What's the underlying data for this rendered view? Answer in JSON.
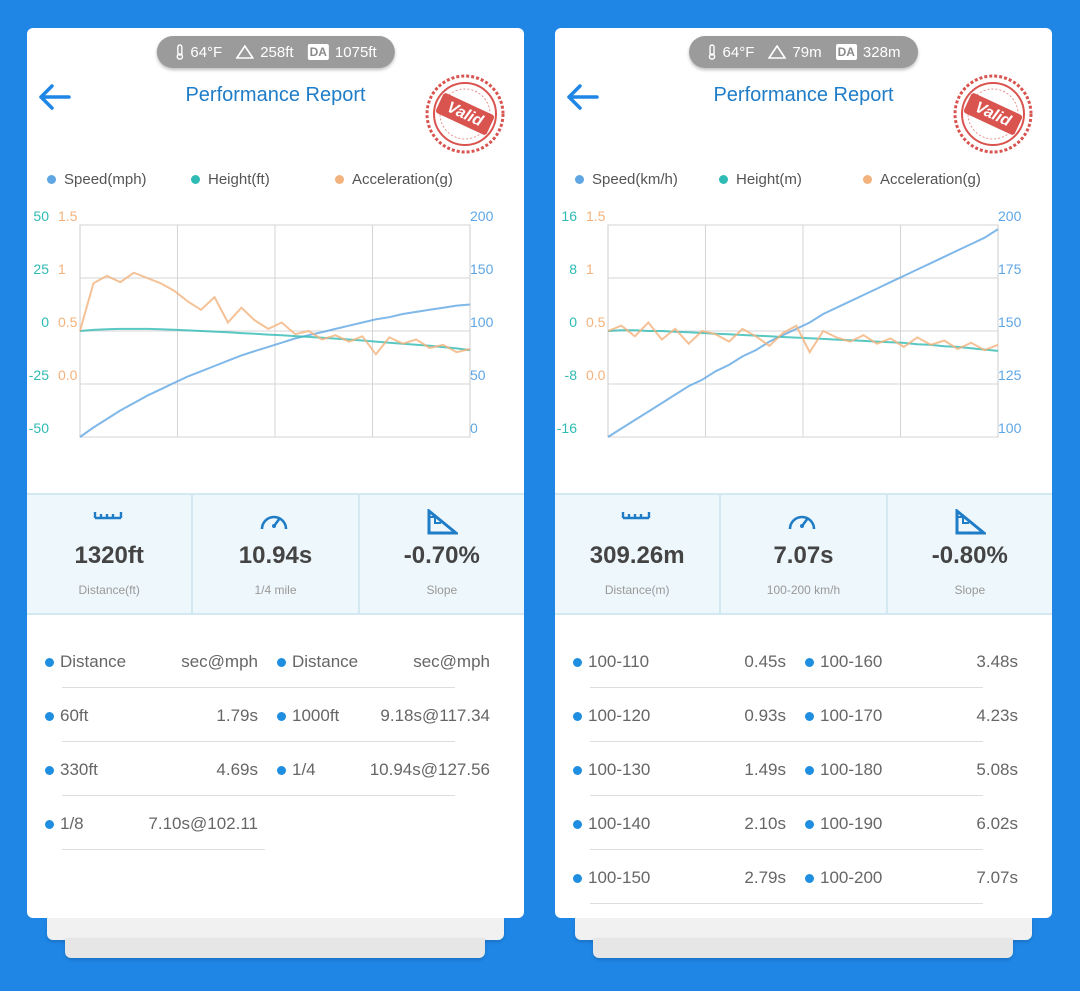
{
  "panels": [
    {
      "weather": {
        "temperature": "64°F",
        "altitude": "258ft",
        "da_label": "DA",
        "density_altitude": "1075ft"
      },
      "title": "Performance Report",
      "stamp": "Valid",
      "chart_data": {
        "type": "line",
        "grid": true,
        "series": [
          {
            "name": "Speed(mph)",
            "color": "#5fa6e4",
            "axis": "y2",
            "values": [
              0,
              9,
              17,
              25,
              32,
              39,
              45,
              51,
              57,
              62,
              67,
              72,
              77,
              81,
              85,
              89,
              93,
              96,
              99,
              102,
              105,
              108,
              111,
              113,
              116,
              118,
              120,
              122,
              124,
              125
            ]
          },
          {
            "name": "Height(ft)",
            "color": "#2fbab4",
            "values": [
              0,
              0.5,
              0.8,
              1,
              1,
              1,
              0.8,
              0.6,
              0.3,
              0,
              -0.3,
              -0.6,
              -1,
              -1.3,
              -1.7,
              -2,
              -2.4,
              -2.8,
              -3.2,
              -3.6,
              -4,
              -4.5,
              -5,
              -5.5,
              -6,
              -6.5,
              -7,
              -7.6,
              -8.2,
              -9
            ]
          },
          {
            "name": "Acceleration(g)",
            "color": "#f3b27c",
            "axis": "y3",
            "values": [
              0.5,
              0.95,
              1.02,
              0.96,
              1.05,
              1.0,
              0.95,
              0.88,
              0.78,
              0.7,
              0.82,
              0.58,
              0.72,
              0.6,
              0.52,
              0.58,
              0.47,
              0.5,
              0.42,
              0.46,
              0.4,
              0.45,
              0.28,
              0.44,
              0.38,
              0.42,
              0.34,
              0.37,
              0.3,
              0.33
            ]
          }
        ],
        "ylim": [
          -50,
          50
        ],
        "yticks": [
          -50,
          -25,
          0,
          25,
          50
        ],
        "y2lim": [
          0,
          200
        ],
        "y2ticks": [
          0,
          50,
          100,
          150,
          200
        ],
        "y3lim": [
          -0.5,
          1.5
        ],
        "y3ticks": [
          {
            "value": 0,
            "label": "0.0"
          },
          0.5,
          1,
          1.5
        ]
      },
      "stats": [
        {
          "value": "1320ft",
          "label": "Distance(ft)"
        },
        {
          "value": "10.94s",
          "label": "1/4 mile"
        },
        {
          "value": "-0.70%",
          "label": "Slope"
        }
      ],
      "table": {
        "header": [
          "Distance",
          "sec@mph",
          "Distance",
          "sec@mph"
        ],
        "rows": [
          [
            "60ft",
            "1.79s",
            "1000ft",
            "9.18s@117.34"
          ],
          [
            "330ft",
            "4.69s",
            "1/4",
            "10.94s@127.56"
          ],
          [
            "1/8",
            "7.10s@102.11"
          ]
        ]
      }
    },
    {
      "weather": {
        "temperature": "64°F",
        "altitude": "79m",
        "da_label": "DA",
        "density_altitude": "328m"
      },
      "title": "Performance Report",
      "stamp": "Valid",
      "chart_data": {
        "type": "line",
        "grid": true,
        "series": [
          {
            "name": "Speed(km/h)",
            "color": "#5fa6e4",
            "axis": "y2",
            "values": [
              100,
              104,
              108,
              112,
              116,
              120,
              124,
              127,
              131,
              134,
              138,
              141,
              145,
              148,
              151,
              154,
              158,
              161,
              164,
              167,
              170,
              173,
              176,
              179,
              182,
              185,
              188,
              191,
              194,
              198
            ]
          },
          {
            "name": "Height(m)",
            "color": "#2fbab4",
            "values": [
              0,
              0.1,
              0.1,
              0,
              0,
              -0.1,
              -0.2,
              -0.3,
              -0.4,
              -0.5,
              -0.6,
              -0.7,
              -0.8,
              -0.9,
              -1,
              -1.1,
              -1.2,
              -1.3,
              -1.4,
              -1.5,
              -1.6,
              -1.7,
              -1.8,
              -2,
              -2.1,
              -2.3,
              -2.4,
              -2.6,
              -2.8,
              -3
            ]
          },
          {
            "name": "Acceleration(g)",
            "color": "#f3b27c",
            "axis": "y3",
            "values": [
              0.5,
              0.55,
              0.45,
              0.58,
              0.42,
              0.52,
              0.38,
              0.5,
              0.47,
              0.4,
              0.52,
              0.45,
              0.36,
              0.48,
              0.55,
              0.3,
              0.5,
              0.44,
              0.4,
              0.46,
              0.38,
              0.43,
              0.35,
              0.44,
              0.37,
              0.41,
              0.33,
              0.39,
              0.32,
              0.37
            ]
          }
        ],
        "ylim": [
          -16,
          16
        ],
        "yticks": [
          -16,
          -8,
          0,
          8,
          16
        ],
        "y2lim": [
          100,
          200
        ],
        "y2ticks": [
          100,
          125,
          150,
          175,
          200
        ],
        "y3lim": [
          -0.5,
          1.5
        ],
        "y3ticks": [
          {
            "value": 0,
            "label": "0.0"
          },
          0.5,
          1,
          1.5
        ]
      },
      "stats": [
        {
          "value": "309.26m",
          "label": "Distance(m)"
        },
        {
          "value": "7.07s",
          "label": "100-200 km/h"
        },
        {
          "value": "-0.80%",
          "label": "Slope"
        }
      ],
      "table": {
        "rows": [
          [
            "100-110",
            "0.45s",
            "100-160",
            "3.48s"
          ],
          [
            "100-120",
            "0.93s",
            "100-170",
            "4.23s"
          ],
          [
            "100-130",
            "1.49s",
            "100-180",
            "5.08s"
          ],
          [
            "100-140",
            "2.10s",
            "100-190",
            "6.02s"
          ],
          [
            "100-150",
            "2.79s",
            "100-200",
            "7.07s"
          ]
        ]
      }
    }
  ]
}
